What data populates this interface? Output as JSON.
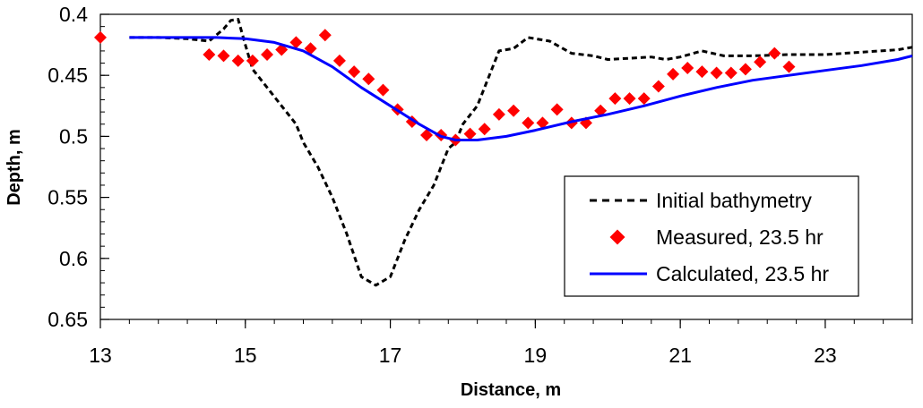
{
  "chart_data": {
    "type": "line",
    "title": "",
    "xlabel": "Distance, m",
    "ylabel": "Depth, m",
    "xlim": [
      13,
      24.2
    ],
    "ylim": [
      0.4,
      0.65
    ],
    "y_inverted": true,
    "x_ticks": [
      13,
      15,
      17,
      19,
      21,
      23
    ],
    "x_minor_step": 0.4,
    "y_ticks": [
      0.4,
      0.45,
      0.5,
      0.55,
      0.6,
      0.65
    ],
    "y_tick_labels": [
      "0.4",
      "0.45",
      "0.5",
      "0.55",
      "0.6",
      "0.65"
    ],
    "y_minor_step": 0.01,
    "grid": false,
    "legend_position": "lower-right",
    "series": [
      {
        "name": "Initial bathymetry",
        "kind": "line",
        "style": "dashed",
        "color": "#000000",
        "points": [
          [
            13.4,
            0.419
          ],
          [
            13.8,
            0.419
          ],
          [
            14.2,
            0.42
          ],
          [
            14.5,
            0.422
          ],
          [
            14.7,
            0.412
          ],
          [
            14.8,
            0.405
          ],
          [
            14.9,
            0.404
          ],
          [
            15.0,
            0.425
          ],
          [
            15.1,
            0.445
          ],
          [
            15.3,
            0.46
          ],
          [
            15.5,
            0.475
          ],
          [
            15.7,
            0.49
          ],
          [
            15.8,
            0.505
          ],
          [
            16.0,
            0.525
          ],
          [
            16.2,
            0.55
          ],
          [
            16.4,
            0.58
          ],
          [
            16.6,
            0.615
          ],
          [
            16.8,
            0.622
          ],
          [
            17.0,
            0.615
          ],
          [
            17.2,
            0.585
          ],
          [
            17.4,
            0.56
          ],
          [
            17.6,
            0.54
          ],
          [
            17.8,
            0.51
          ],
          [
            17.9,
            0.505
          ],
          [
            18.0,
            0.49
          ],
          [
            18.2,
            0.475
          ],
          [
            18.4,
            0.445
          ],
          [
            18.5,
            0.43
          ],
          [
            18.7,
            0.428
          ],
          [
            18.9,
            0.419
          ],
          [
            19.2,
            0.422
          ],
          [
            19.5,
            0.432
          ],
          [
            19.8,
            0.434
          ],
          [
            20.0,
            0.437
          ],
          [
            20.3,
            0.436
          ],
          [
            20.6,
            0.435
          ],
          [
            20.8,
            0.437
          ],
          [
            21.0,
            0.435
          ],
          [
            21.3,
            0.43
          ],
          [
            21.6,
            0.434
          ],
          [
            22.0,
            0.434
          ],
          [
            22.5,
            0.433
          ],
          [
            23.0,
            0.433
          ],
          [
            23.5,
            0.431
          ],
          [
            24.0,
            0.429
          ],
          [
            24.2,
            0.427
          ]
        ]
      },
      {
        "name": "Measured, 23.5 hr",
        "kind": "scatter",
        "marker": "diamond",
        "color": "#ff0000",
        "points": [
          [
            13.0,
            0.419
          ],
          [
            14.5,
            0.433
          ],
          [
            14.7,
            0.434
          ],
          [
            14.9,
            0.438
          ],
          [
            15.1,
            0.438
          ],
          [
            15.3,
            0.433
          ],
          [
            15.5,
            0.429
          ],
          [
            15.7,
            0.423
          ],
          [
            15.9,
            0.428
          ],
          [
            16.1,
            0.417
          ],
          [
            16.3,
            0.438
          ],
          [
            16.5,
            0.447
          ],
          [
            16.7,
            0.453
          ],
          [
            16.9,
            0.462
          ],
          [
            17.1,
            0.478
          ],
          [
            17.3,
            0.488
          ],
          [
            17.5,
            0.499
          ],
          [
            17.7,
            0.499
          ],
          [
            17.9,
            0.503
          ],
          [
            18.1,
            0.498
          ],
          [
            18.3,
            0.494
          ],
          [
            18.5,
            0.482
          ],
          [
            18.7,
            0.479
          ],
          [
            18.9,
            0.489
          ],
          [
            19.1,
            0.489
          ],
          [
            19.3,
            0.478
          ],
          [
            19.5,
            0.489
          ],
          [
            19.7,
            0.489
          ],
          [
            19.9,
            0.479
          ],
          [
            20.1,
            0.469
          ],
          [
            20.3,
            0.469
          ],
          [
            20.5,
            0.469
          ],
          [
            20.7,
            0.459
          ],
          [
            20.9,
            0.449
          ],
          [
            21.1,
            0.444
          ],
          [
            21.3,
            0.447
          ],
          [
            21.5,
            0.448
          ],
          [
            21.7,
            0.448
          ],
          [
            21.9,
            0.445
          ],
          [
            22.1,
            0.439
          ],
          [
            22.3,
            0.432
          ],
          [
            22.5,
            0.443
          ]
        ]
      },
      {
        "name": "Calculated, 23.5 hr",
        "kind": "line",
        "style": "solid",
        "color": "#0000ff",
        "points": [
          [
            13.4,
            0.419
          ],
          [
            14.0,
            0.419
          ],
          [
            14.6,
            0.419
          ],
          [
            15.0,
            0.42
          ],
          [
            15.4,
            0.423
          ],
          [
            15.8,
            0.43
          ],
          [
            16.2,
            0.443
          ],
          [
            16.6,
            0.46
          ],
          [
            17.0,
            0.475
          ],
          [
            17.4,
            0.49
          ],
          [
            17.7,
            0.5
          ],
          [
            17.9,
            0.503
          ],
          [
            18.2,
            0.503
          ],
          [
            18.6,
            0.5
          ],
          [
            19.0,
            0.495
          ],
          [
            19.5,
            0.488
          ],
          [
            20.0,
            0.482
          ],
          [
            20.5,
            0.475
          ],
          [
            21.0,
            0.467
          ],
          [
            21.5,
            0.46
          ],
          [
            22.0,
            0.454
          ],
          [
            22.5,
            0.45
          ],
          [
            23.0,
            0.446
          ],
          [
            23.5,
            0.442
          ],
          [
            24.0,
            0.437
          ],
          [
            24.2,
            0.434
          ]
        ]
      }
    ]
  }
}
